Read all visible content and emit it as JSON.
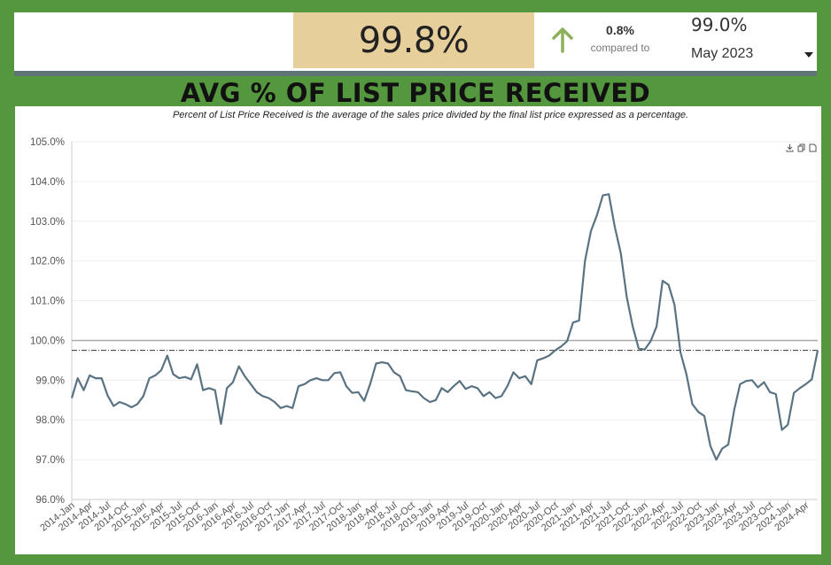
{
  "header": {
    "current_value": "99.8%",
    "change": "0.8%",
    "compared_label": "compared to",
    "previous_value": "99.0%",
    "period": "May 2023",
    "colors": {
      "value_box": "#e6cf9a",
      "arrow": "#8db05a",
      "background": "#54973f"
    },
    "icons": {
      "trend": "arrow-up-icon",
      "dropdown": "caret-down-icon"
    }
  },
  "title": "AVG % OF LIST PRICE RECEIVED",
  "subtitle": "Percent of List Price Received is the average of the sales price divided by the final list price expressed as a percentage.",
  "toolbar": {
    "icons": [
      "download-icon",
      "copy-icon",
      "document-icon"
    ]
  },
  "chart_data": {
    "type": "line",
    "ylim": [
      96,
      105
    ],
    "yticks": [
      "96.0%",
      "97.0%",
      "98.0%",
      "99.0%",
      "100.0%",
      "101.0%",
      "102.0%",
      "103.0%",
      "104.0%",
      "105.0%"
    ],
    "xtick_labels": [
      "2014-Jan",
      "2014-Apr",
      "2014-Jul",
      "2014-Oct",
      "2015-Jan",
      "2015-Apr",
      "2015-Jul",
      "2015-Oct",
      "2016-Jan",
      "2016-Apr",
      "2016-Jul",
      "2016-Oct",
      "2017-Jan",
      "2017-Apr",
      "2017-Jul",
      "2017-Oct",
      "2018-Jan",
      "2018-Apr",
      "2018-Jul",
      "2018-Oct",
      "2019-Jan",
      "2019-Apr",
      "2019-Jul",
      "2019-Oct",
      "2020-Jan",
      "2020-Apr",
      "2020-Jul",
      "2020-Oct",
      "2021-Jan",
      "2021-Apr",
      "2021-Jul",
      "2021-Oct",
      "2022-Jan",
      "2022-Apr",
      "2022-Jul",
      "2022-Oct",
      "2023-Jan",
      "2023-Apr",
      "2023-Jul",
      "2023-Oct",
      "2024-Jan",
      "2024-Apr"
    ],
    "reference_lines": [
      {
        "value": 100.0,
        "style": "solid",
        "color": "#aaaaaa"
      },
      {
        "value": 99.75,
        "style": "dash-dot",
        "color": "#333333"
      }
    ],
    "series": [
      {
        "color": "#5a7383",
        "values": [
          98.55,
          99.05,
          98.75,
          99.12,
          99.05,
          99.05,
          98.62,
          98.35,
          98.45,
          98.4,
          98.32,
          98.4,
          98.6,
          99.05,
          99.12,
          99.25,
          99.62,
          99.15,
          99.05,
          99.08,
          99.02,
          99.4,
          98.75,
          98.8,
          98.75,
          97.9,
          98.8,
          98.95,
          99.35,
          99.1,
          98.9,
          98.7,
          98.6,
          98.55,
          98.45,
          98.3,
          98.35,
          98.3,
          98.85,
          98.9,
          99.0,
          99.05,
          99.0,
          99.0,
          99.18,
          99.2,
          98.85,
          98.68,
          98.7,
          98.48,
          98.9,
          99.42,
          99.45,
          99.42,
          99.2,
          99.1,
          98.75,
          98.72,
          98.7,
          98.55,
          98.45,
          98.5,
          98.8,
          98.7,
          98.85,
          98.98,
          98.78,
          98.85,
          98.8,
          98.6,
          98.7,
          98.55,
          98.6,
          98.85,
          99.2,
          99.05,
          99.1,
          98.9,
          99.5,
          99.55,
          99.62,
          99.75,
          99.85,
          99.98,
          100.45,
          100.5,
          102.0,
          102.75,
          103.15,
          103.65,
          103.68,
          102.85,
          102.2,
          101.1,
          100.35,
          99.8,
          99.77,
          99.98,
          100.35,
          101.5,
          101.4,
          100.9,
          99.7,
          99.15,
          98.4,
          98.2,
          98.1,
          97.35,
          97.0,
          97.28,
          97.38,
          98.25,
          98.9,
          98.98,
          99.0,
          98.82,
          98.95,
          98.7,
          98.65,
          97.75,
          97.88,
          98.68,
          98.8,
          98.9,
          99.02,
          99.75
        ]
      }
    ]
  }
}
